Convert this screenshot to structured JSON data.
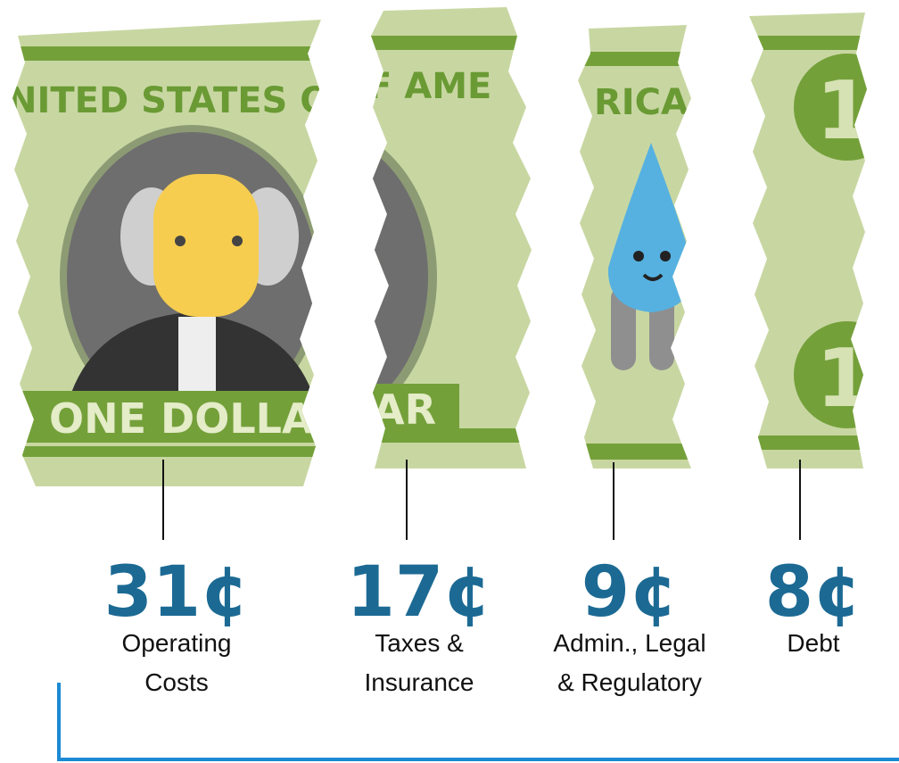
{
  "banner_text": [
    "NITED STATES O",
    "F AME",
    "RICA"
  ],
  "bill_label": [
    "ONE DOLLA",
    "AR"
  ],
  "bill_numeral": "1",
  "items": [
    {
      "amount": "31¢",
      "label_lines": [
        "Operating",
        "Costs"
      ]
    },
    {
      "amount": "17¢",
      "label_lines": [
        "Taxes &",
        "Insurance"
      ]
    },
    {
      "amount": "9¢",
      "label_lines": [
        "Admin., Legal",
        "& Regulatory"
      ]
    },
    {
      "amount": "8¢",
      "label_lines": [
        "Debt"
      ]
    }
  ]
}
